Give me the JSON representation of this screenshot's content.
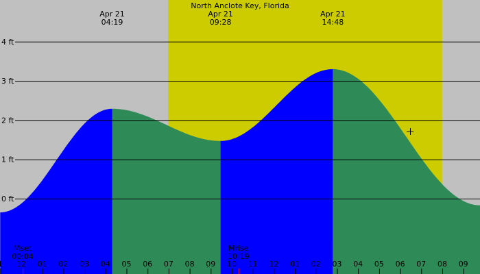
{
  "chart_data": {
    "type": "area",
    "title": "North Anclote Key, Florida",
    "y_unit": "ft",
    "ylim": [
      -0.6,
      4.5
    ],
    "y_ticks": [
      0,
      1,
      2,
      3,
      4
    ],
    "y_tick_labels": [
      "0 ft",
      "1 ft",
      "2 ft",
      "3 ft",
      "4 ft"
    ],
    "x_range_hours": [
      -1,
      21.8
    ],
    "x_tick_hours": [
      -1,
      0,
      1,
      2,
      3,
      4,
      5,
      6,
      7,
      8,
      9,
      10,
      11,
      12,
      13,
      14,
      15,
      16,
      17,
      18,
      19,
      20,
      21
    ],
    "x_tick_labels": [
      "1",
      "12",
      "01",
      "02",
      "03",
      "04",
      "05",
      "06",
      "07",
      "08",
      "09",
      "10",
      "11",
      "12",
      "01",
      "02",
      "03",
      "04",
      "05",
      "06",
      "07",
      "08",
      "09"
    ],
    "daylight_hours": [
      6.97,
      19.99
    ],
    "extremes": [
      {
        "date": "Apr 21",
        "time": "04:19",
        "hour": 4.317,
        "height": 2.29,
        "kind": "high"
      },
      {
        "date": "Apr 21",
        "time": "09:28",
        "hour": 9.467,
        "height": 1.47,
        "kind": "low"
      },
      {
        "date": "Apr 21",
        "time": "14:48",
        "hour": 14.8,
        "height": 3.3,
        "kind": "high"
      }
    ],
    "curve_points": [
      [
        -1,
        -0.35
      ],
      [
        4.317,
        2.29
      ],
      [
        9.467,
        1.47
      ],
      [
        14.8,
        3.3
      ],
      [
        21.8,
        -0.17
      ]
    ],
    "moon_events": [
      {
        "label": "Mset",
        "time": "00:04",
        "hour": 0.067
      },
      {
        "label": "Mrise",
        "time": "10:19",
        "hour": 10.317
      }
    ],
    "grid": true,
    "colors": {
      "night": "#c0c0c0",
      "day": "#cccc00",
      "rising": "#0000ff",
      "falling": "#2e8b57",
      "moon_marker": "#ff0000"
    }
  }
}
